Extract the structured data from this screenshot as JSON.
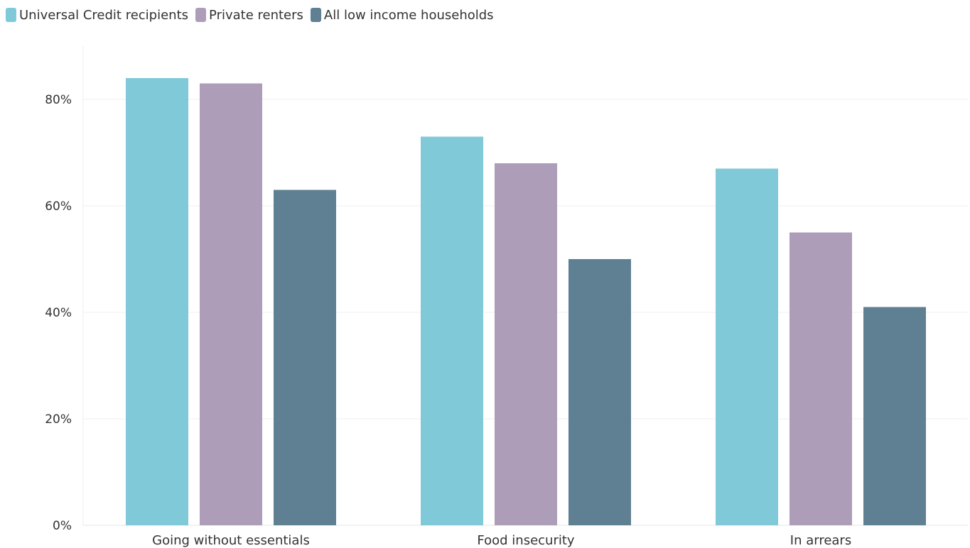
{
  "chart_data": {
    "type": "bar",
    "categories": [
      "Going without essentials",
      "Food insecurity",
      "In arrears"
    ],
    "series": [
      {
        "name": "Universal Credit recipients",
        "color": "#7fc9d8",
        "values": [
          84,
          73,
          67
        ]
      },
      {
        "name": "Private renters",
        "color": "#ae9db9",
        "values": [
          83,
          68,
          55
        ]
      },
      {
        "name": "All low income households",
        "color": "#5f8093",
        "values": [
          63,
          50,
          41
        ]
      }
    ],
    "y_ticks": [
      "0%",
      "20%",
      "40%",
      "60%",
      "80%"
    ],
    "ylim": [
      0,
      90
    ],
    "grid": true,
    "legend_position": "top-left",
    "title": "",
    "xlabel": "",
    "ylabel": ""
  }
}
